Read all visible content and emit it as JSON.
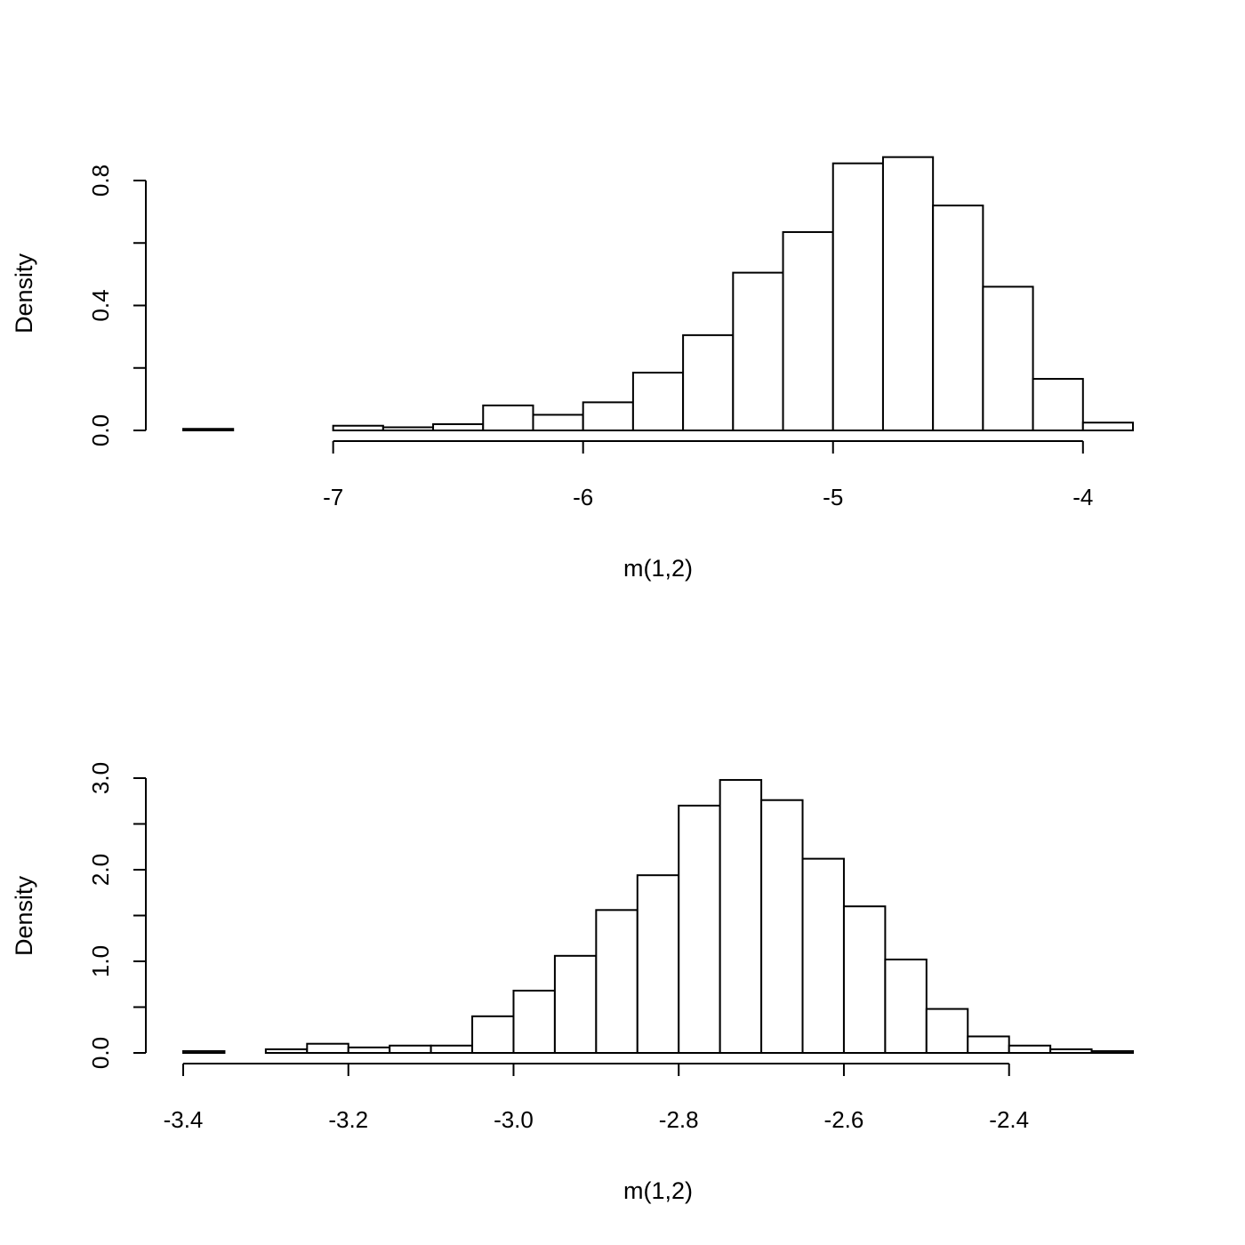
{
  "chart_data": [
    {
      "type": "histogram",
      "xlabel": "m(1,2)",
      "ylabel": "Density",
      "xlim": [
        -7.6,
        -3.8
      ],
      "ylim": [
        0,
        0.8
      ],
      "x_ticks": [
        -7,
        -6,
        -5,
        -4
      ],
      "x_tick_labels": [
        "-7",
        "-6",
        "-5",
        "-4"
      ],
      "y_ticks": [
        0,
        0.2,
        0.4,
        0.6,
        0.8
      ],
      "y_tick_labels": [
        "0.0",
        "",
        "0.4",
        "",
        "0.8"
      ],
      "bin_edges": [
        -7.6,
        -7.4,
        -7.2,
        -7.0,
        -6.8,
        -6.6,
        -6.4,
        -6.2,
        -6.0,
        -5.8,
        -5.6,
        -5.4,
        -5.2,
        -5.0,
        -4.8,
        -4.6,
        -4.4,
        -4.2,
        -4.0,
        -3.8
      ],
      "density": [
        0.005,
        0.0,
        0.0,
        0.015,
        0.01,
        0.02,
        0.08,
        0.05,
        0.09,
        0.185,
        0.305,
        0.505,
        0.635,
        0.855,
        0.875,
        0.72,
        0.46,
        0.165,
        0.025
      ],
      "grid": false
    },
    {
      "type": "histogram",
      "xlabel": "m(1,2)",
      "ylabel": "Density",
      "xlim": [
        -3.4,
        -2.25
      ],
      "ylim": [
        0,
        3.0
      ],
      "x_ticks": [
        -3.4,
        -3.2,
        -3.0,
        -2.8,
        -2.6,
        -2.4
      ],
      "x_tick_labels": [
        "-3.4",
        "-3.2",
        "-3.0",
        "-2.8",
        "-2.6",
        "-2.4"
      ],
      "y_ticks": [
        0,
        0.5,
        1.0,
        1.5,
        2.0,
        2.5,
        3.0
      ],
      "y_tick_labels": [
        "0.0",
        "",
        "1.0",
        "",
        "2.0",
        "",
        "3.0"
      ],
      "bin_edges": [
        -3.4,
        -3.35,
        -3.3,
        -3.25,
        -3.2,
        -3.15,
        -3.1,
        -3.05,
        -3.0,
        -2.95,
        -2.9,
        -2.85,
        -2.8,
        -2.75,
        -2.7,
        -2.65,
        -2.6,
        -2.55,
        -2.5,
        -2.45,
        -2.4,
        -2.35,
        -2.3,
        -2.25
      ],
      "density": [
        0.02,
        0.0,
        0.04,
        0.1,
        0.06,
        0.08,
        0.08,
        0.4,
        0.68,
        1.06,
        1.56,
        1.94,
        2.7,
        2.98,
        2.76,
        2.12,
        1.6,
        1.02,
        0.48,
        0.18,
        0.08,
        0.04,
        0.02
      ],
      "grid": false
    }
  ]
}
